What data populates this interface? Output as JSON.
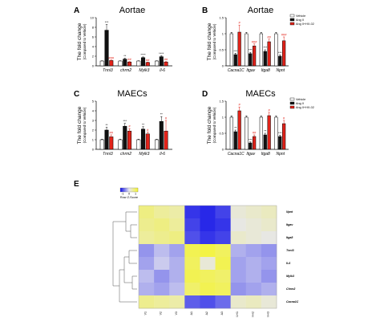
{
  "panels": {
    "A": {
      "letter": "A",
      "title": "Aortae"
    },
    "B": {
      "letter": "B",
      "title": "Aortae"
    },
    "C": {
      "letter": "C",
      "title": "MAECs"
    },
    "D": {
      "letter": "D",
      "title": "MAECs"
    },
    "E": {
      "letter": "E"
    }
  },
  "colors": {
    "vehicle": "#ffffff",
    "angII": "#111111",
    "angII_inhibitor": "#e2231a",
    "heat_low": "#1a1ae8",
    "heat_mid": "#e6e6ef",
    "heat_high": "#f4f43a"
  },
  "chart_data": [
    {
      "id": "A",
      "type": "bar",
      "title": "Aortae",
      "ylabel": "The fold change",
      "ylabel_sub": "(Compared to Vehicle)",
      "ylim": [
        0,
        10
      ],
      "yticks": [
        0,
        2,
        4,
        6,
        8,
        10
      ],
      "categories": [
        "Tnni3",
        "chrm2",
        "Mylk3",
        "Il-6"
      ],
      "series": [
        {
          "values": [
            1.0,
            1.0,
            1.0,
            1.0
          ],
          "errors": [
            0.05,
            0.05,
            0.05,
            0.05
          ]
        },
        {
          "values": [
            7.4,
            1.4,
            1.7,
            1.9
          ],
          "errors": [
            1.2,
            0.2,
            0.15,
            0.2
          ]
        },
        {
          "values": [
            1.1,
            0.8,
            0.7,
            0.8
          ],
          "errors": [
            0.1,
            0.1,
            0.08,
            0.1
          ]
        }
      ],
      "annotations": [
        [
          "",
          "***",
          "###"
        ],
        [
          "",
          "**",
          "##"
        ],
        [
          "",
          "****",
          "##"
        ],
        [
          "",
          "****",
          "##"
        ]
      ]
    },
    {
      "id": "B",
      "type": "bar",
      "title": "Aortae",
      "ylabel": "The fold change",
      "ylabel_sub": "(Compared to Vehicle)",
      "ylim": [
        0,
        1.5
      ],
      "yticks": [
        0,
        0.5,
        1.0,
        1.5
      ],
      "categories": [
        "Cacna1C",
        "Itgav",
        "Itga8",
        "Npnt"
      ],
      "series": [
        {
          "values": [
            1.0,
            1.0,
            1.0,
            1.0
          ],
          "errors": [
            0.04,
            0.04,
            0.04,
            0.04
          ]
        },
        {
          "values": [
            0.35,
            0.38,
            0.45,
            0.3
          ],
          "errors": [
            0.04,
            0.04,
            0.05,
            0.04
          ]
        },
        {
          "values": [
            1.05,
            0.62,
            0.75,
            0.78
          ],
          "errors": [
            0.22,
            0.06,
            0.08,
            0.12
          ]
        }
      ],
      "legend": {
        "position": "top-right",
        "entries": [
          "Vehicle",
          "Ang II",
          "Ang II+HX-02"
        ]
      },
      "annotations": [
        [
          "",
          "***",
          "#"
        ],
        [
          "",
          "***",
          "###"
        ],
        [
          "",
          "***",
          "##"
        ],
        [
          "",
          "***",
          "###"
        ]
      ]
    },
    {
      "id": "C",
      "type": "bar",
      "title": "MAECs",
      "ylabel": "The fold change",
      "ylabel_sub": "(Compared to Vehicle)",
      "ylim": [
        0,
        5
      ],
      "yticks": [
        0,
        1,
        2,
        3,
        4,
        5
      ],
      "categories": [
        "Tnni3",
        "chrm2",
        "Mylk3",
        "Il-6"
      ],
      "series": [
        {
          "values": [
            1.0,
            1.0,
            1.0,
            1.0
          ],
          "errors": [
            0.05,
            0.05,
            0.05,
            0.05
          ]
        },
        {
          "values": [
            2.0,
            2.4,
            2.1,
            2.9
          ],
          "errors": [
            0.3,
            0.3,
            0.25,
            0.5
          ]
        },
        {
          "values": [
            1.3,
            1.9,
            1.6,
            1.9
          ],
          "errors": [
            0.2,
            0.25,
            0.2,
            1.1
          ]
        }
      ],
      "annotations": [
        [
          "",
          "**",
          "##"
        ],
        [
          "",
          "***",
          "#"
        ],
        [
          "",
          "**",
          "#"
        ],
        [
          "",
          "**",
          "#"
        ]
      ]
    },
    {
      "id": "D",
      "type": "bar",
      "title": "MAECs",
      "ylabel": "The fold change",
      "ylabel_sub": "(Compared to Vehicle)",
      "ylim": [
        0,
        1.5
      ],
      "yticks": [
        0,
        0.5,
        1.0,
        1.5
      ],
      "categories": [
        "Cacna1C",
        "Itgav",
        "Itga8",
        "Npnt"
      ],
      "series": [
        {
          "values": [
            1.0,
            1.0,
            1.0,
            1.0
          ],
          "errors": [
            0.04,
            0.04,
            0.04,
            0.04
          ]
        },
        {
          "values": [
            0.55,
            0.2,
            0.45,
            0.4
          ],
          "errors": [
            0.05,
            0.03,
            0.05,
            0.04
          ]
        },
        {
          "values": [
            1.2,
            0.4,
            1.05,
            0.8
          ],
          "errors": [
            0.12,
            0.05,
            0.1,
            0.1
          ]
        }
      ],
      "legend": {
        "position": "top-right",
        "entries": [
          "Vehicle",
          "Ang II",
          "Ang II+HX-02"
        ]
      },
      "annotations": [
        [
          "",
          "**",
          "#"
        ],
        [
          "",
          "***",
          "##"
        ],
        [
          "",
          "**",
          "#"
        ],
        [
          "",
          "***",
          "#"
        ]
      ]
    },
    {
      "id": "E",
      "type": "heatmap",
      "columns": [
        "V1",
        "V2",
        "V3",
        "A1",
        "A2",
        "A3",
        "I-H1",
        "I-H2",
        "I-H3"
      ],
      "rows": [
        "Npnt",
        "Itgav",
        "Itga8",
        "Tnni3",
        "Il-6",
        "Mylk3",
        "Chrm2",
        "Cacna1C"
      ],
      "color_range": [
        -1.5,
        1.5
      ],
      "colorbar_ticks": [
        "-1",
        "0",
        "1"
      ],
      "colorbar_label": "Row Z-Score",
      "values": [
        [
          0.9,
          0.7,
          0.6,
          -1.3,
          -1.4,
          -1.2,
          0.2,
          0.3,
          0.4
        ],
        [
          0.8,
          0.9,
          0.7,
          -1.2,
          -1.4,
          -1.3,
          0.1,
          0.2,
          0.3
        ],
        [
          0.7,
          0.8,
          0.9,
          -1.1,
          -1.3,
          -1.2,
          0.3,
          0.2,
          0.1
        ],
        [
          -0.6,
          -0.3,
          -0.5,
          1.3,
          1.4,
          1.2,
          -0.4,
          -0.5,
          -0.6
        ],
        [
          -0.5,
          -0.2,
          -0.4,
          1.2,
          0.2,
          1.3,
          -0.5,
          -0.4,
          -0.5
        ],
        [
          -0.3,
          -0.6,
          -0.4,
          1.3,
          1.2,
          1.1,
          -0.5,
          -0.4,
          -0.6
        ],
        [
          -0.4,
          -0.5,
          -0.3,
          1.1,
          1.3,
          1.2,
          -0.6,
          -0.5,
          -0.4
        ],
        [
          0.8,
          0.7,
          0.6,
          -1.0,
          -1.1,
          -0.9,
          0.3,
          0.4,
          0.2
        ]
      ]
    }
  ]
}
